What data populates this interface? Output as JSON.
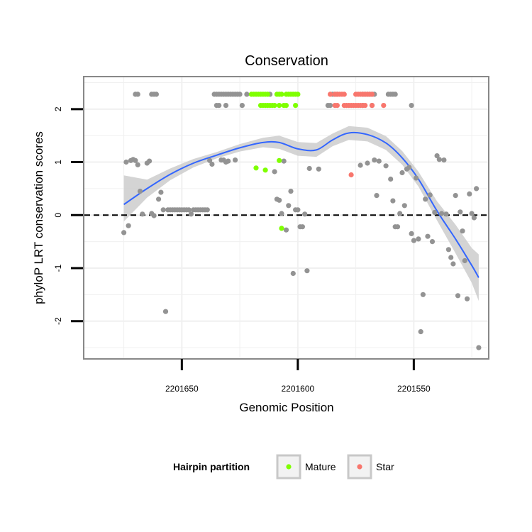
{
  "chart_data": {
    "type": "scatter",
    "title": "Conservation",
    "xlabel": "Genomic Position",
    "ylabel": "phyloP LRT conservation scores",
    "x_reversed": true,
    "xlim": [
      2201692,
      2201518
    ],
    "ylim": [
      -2.7,
      2.6
    ],
    "x_ticks": [
      2201650,
      2201600,
      2201550
    ],
    "y_ticks": [
      -2,
      -1,
      0,
      1,
      2
    ],
    "reference_line": {
      "y": 0,
      "style": "dashed"
    },
    "grid": true,
    "legend": {
      "title": "Hairpin partition",
      "position": "bottom",
      "entries": [
        {
          "label": "Mature",
          "color": "#7fff00"
        },
        {
          "label": "Star",
          "color": "#f8766d"
        }
      ]
    },
    "colors": {
      "other": "#939393",
      "Mature": "#7fff00",
      "Star": "#f8766d",
      "smooth": "#3366ff",
      "band": "#cccccc"
    },
    "series": [
      {
        "group": "other",
        "points": [
          [
            2201675,
            -0.33
          ],
          [
            2201673,
            -0.2
          ],
          [
            2201674,
            1.0
          ],
          [
            2201672,
            1.03
          ],
          [
            2201671,
            1.05
          ],
          [
            2201670,
            1.03
          ],
          [
            2201669,
            0.95
          ],
          [
            2201668,
            0.45
          ],
          [
            2201667,
            0.02
          ],
          [
            2201665,
            0.98
          ],
          [
            2201664,
            1.02
          ],
          [
            2201663,
            0.03
          ],
          [
            2201662,
            -0.01
          ],
          [
            2201660,
            0.3
          ],
          [
            2201659,
            0.43
          ],
          [
            2201658,
            0.1
          ],
          [
            2201657,
            -1.82
          ],
          [
            2201656,
            0.1
          ],
          [
            2201655,
            0.1
          ],
          [
            2201654,
            0.1
          ],
          [
            2201653,
            0.1
          ],
          [
            2201652,
            0.1
          ],
          [
            2201651,
            0.1
          ],
          [
            2201650,
            0.1
          ],
          [
            2201649,
            0.1
          ],
          [
            2201648,
            0.1
          ],
          [
            2201647,
            0.1
          ],
          [
            2201646,
            0.02
          ],
          [
            2201645,
            0.1
          ],
          [
            2201644,
            0.1
          ],
          [
            2201643,
            0.1
          ],
          [
            2201642,
            0.1
          ],
          [
            2201641,
            0.1
          ],
          [
            2201640,
            0.1
          ],
          [
            2201639,
            0.1
          ],
          [
            2201638,
            1.03
          ],
          [
            2201637,
            0.96
          ],
          [
            2201633,
            1.04
          ],
          [
            2201632,
            1.04
          ],
          [
            2201631,
            1.0
          ],
          [
            2201630,
            1.02
          ],
          [
            2201627,
            1.04
          ],
          [
            2201610,
            0.82
          ],
          [
            2201609,
            0.3
          ],
          [
            2201608,
            0.28
          ],
          [
            2201607,
            0.03
          ],
          [
            2201606,
            1.02
          ],
          [
            2201605,
            -0.28
          ],
          [
            2201604,
            0.18
          ],
          [
            2201603,
            0.45
          ],
          [
            2201602,
            -1.1
          ],
          [
            2201601,
            0.1
          ],
          [
            2201600,
            0.1
          ],
          [
            2201599,
            -0.22
          ],
          [
            2201598,
            -0.22
          ],
          [
            2201597,
            0.02
          ],
          [
            2201596,
            -1.05
          ],
          [
            2201595,
            0.88
          ],
          [
            2201591,
            0.87
          ],
          [
            2201573,
            0.94
          ],
          [
            2201570,
            0.98
          ],
          [
            2201567,
            1.04
          ],
          [
            2201566,
            0.37
          ],
          [
            2201565,
            1.02
          ],
          [
            2201562,
            0.93
          ],
          [
            2201560,
            0.68
          ],
          [
            2201559,
            0.27
          ],
          [
            2201558,
            -0.22
          ],
          [
            2201557,
            -0.22
          ],
          [
            2201556,
            0.03
          ],
          [
            2201555,
            0.8
          ],
          [
            2201554,
            0.18
          ],
          [
            2201553,
            0.87
          ],
          [
            2201552,
            0.9
          ],
          [
            2201551,
            -0.35
          ],
          [
            2201550,
            -0.48
          ],
          [
            2201549,
            0.7
          ],
          [
            2201548,
            -0.45
          ],
          [
            2201547,
            -2.2
          ],
          [
            2201546,
            -1.5
          ],
          [
            2201545,
            0.3
          ],
          [
            2201544,
            -0.4
          ],
          [
            2201543,
            0.38
          ],
          [
            2201542,
            -0.5
          ],
          [
            2201541,
            0.05
          ],
          [
            2201540,
            1.12
          ],
          [
            2201539,
            1.05
          ],
          [
            2201538,
            0.03
          ],
          [
            2201537,
            1.04
          ],
          [
            2201536,
            0.02
          ],
          [
            2201535,
            -0.65
          ],
          [
            2201534,
            -0.8
          ],
          [
            2201533,
            -0.92
          ],
          [
            2201532,
            0.37
          ],
          [
            2201531,
            -1.52
          ],
          [
            2201530,
            0.06
          ],
          [
            2201529,
            -0.3
          ],
          [
            2201528,
            -0.86
          ],
          [
            2201527,
            -1.58
          ],
          [
            2201526,
            0.4
          ],
          [
            2201525,
            0.03
          ],
          [
            2201524,
            -0.05
          ],
          [
            2201523,
            0.5
          ],
          [
            2201522,
            -2.5
          ],
          [
            2201670,
            2.28
          ],
          [
            2201669,
            2.28
          ],
          [
            2201663,
            2.28
          ],
          [
            2201662,
            2.28
          ],
          [
            2201661,
            2.28
          ],
          [
            2201636,
            2.28
          ],
          [
            2201635,
            2.28
          ],
          [
            2201634,
            2.28
          ],
          [
            2201633,
            2.28
          ],
          [
            2201632,
            2.28
          ],
          [
            2201631,
            2.28
          ],
          [
            2201630,
            2.28
          ],
          [
            2201629,
            2.28
          ],
          [
            2201628,
            2.28
          ],
          [
            2201627,
            2.28
          ],
          [
            2201626,
            2.28
          ],
          [
            2201625,
            2.28
          ],
          [
            2201622,
            2.28
          ],
          [
            2201612,
            2.28
          ],
          [
            2201585,
            2.28
          ],
          [
            2201584,
            2.28
          ],
          [
            2201583,
            2.28
          ],
          [
            2201572,
            2.28
          ],
          [
            2201571,
            2.28
          ],
          [
            2201570,
            2.28
          ],
          [
            2201569,
            2.28
          ],
          [
            2201568,
            2.28
          ],
          [
            2201567,
            2.28
          ],
          [
            2201561,
            2.28
          ],
          [
            2201560,
            2.28
          ],
          [
            2201559,
            2.28
          ],
          [
            2201558,
            2.28
          ],
          [
            2201635,
            2.07
          ],
          [
            2201634,
            2.07
          ],
          [
            2201631,
            2.07
          ],
          [
            2201624,
            2.07
          ],
          [
            2201587,
            2.07
          ],
          [
            2201586,
            2.07
          ],
          [
            2201572,
            2.07
          ],
          [
            2201568,
            2.07
          ],
          [
            2201551,
            2.07
          ]
        ]
      },
      {
        "group": "Mature",
        "name": "Mature",
        "points": [
          [
            2201620,
            2.28
          ],
          [
            2201619,
            2.28
          ],
          [
            2201618,
            2.28
          ],
          [
            2201617,
            2.28
          ],
          [
            2201616,
            2.28
          ],
          [
            2201615,
            2.28
          ],
          [
            2201614,
            2.28
          ],
          [
            2201613,
            2.28
          ],
          [
            2201609,
            2.28
          ],
          [
            2201608,
            2.28
          ],
          [
            2201607,
            2.28
          ],
          [
            2201605,
            2.28
          ],
          [
            2201604,
            2.28
          ],
          [
            2201603,
            2.28
          ],
          [
            2201602,
            2.28
          ],
          [
            2201601,
            2.28
          ],
          [
            2201600,
            2.28
          ],
          [
            2201616,
            2.07
          ],
          [
            2201615,
            2.07
          ],
          [
            2201614,
            2.07
          ],
          [
            2201613,
            2.07
          ],
          [
            2201612,
            2.07
          ],
          [
            2201611,
            2.07
          ],
          [
            2201610,
            2.07
          ],
          [
            2201608,
            2.07
          ],
          [
            2201606,
            2.07
          ],
          [
            2201605,
            2.07
          ],
          [
            2201601,
            2.07
          ],
          [
            2201618,
            0.89
          ],
          [
            2201614,
            0.85
          ],
          [
            2201608,
            1.03
          ],
          [
            2201607,
            -0.25
          ]
        ]
      },
      {
        "group": "Star",
        "name": "Star",
        "points": [
          [
            2201586,
            2.28
          ],
          [
            2201584,
            2.28
          ],
          [
            2201583,
            2.28
          ],
          [
            2201582,
            2.28
          ],
          [
            2201581,
            2.28
          ],
          [
            2201580,
            2.28
          ],
          [
            2201575,
            2.28
          ],
          [
            2201574,
            2.28
          ],
          [
            2201573,
            2.28
          ],
          [
            2201572,
            2.28
          ],
          [
            2201571,
            2.28
          ],
          [
            2201570,
            2.28
          ],
          [
            2201569,
            2.28
          ],
          [
            2201568,
            2.28
          ],
          [
            2201584,
            2.07
          ],
          [
            2201583,
            2.07
          ],
          [
            2201580,
            2.07
          ],
          [
            2201579,
            2.07
          ],
          [
            2201578,
            2.07
          ],
          [
            2201577,
            2.07
          ],
          [
            2201576,
            2.07
          ],
          [
            2201575,
            2.07
          ],
          [
            2201574,
            2.07
          ],
          [
            2201573,
            2.07
          ],
          [
            2201572,
            2.07
          ],
          [
            2201571,
            2.07
          ],
          [
            2201568,
            2.07
          ],
          [
            2201563,
            2.07
          ],
          [
            2201577,
            0.76
          ]
        ]
      }
    ],
    "smooth": {
      "x": [
        2201675,
        2201665,
        2201655,
        2201645,
        2201635,
        2201625,
        2201615,
        2201608,
        2201600,
        2201592,
        2201585,
        2201578,
        2201570,
        2201562,
        2201555,
        2201548,
        2201540,
        2201532,
        2201525,
        2201522
      ],
      "y": [
        0.2,
        0.5,
        0.77,
        0.98,
        1.13,
        1.27,
        1.37,
        1.37,
        1.25,
        1.23,
        1.42,
        1.55,
        1.52,
        1.36,
        1.08,
        0.68,
        0.08,
        -0.45,
        -0.95,
        -1.18
      ],
      "lower": [
        -0.12,
        0.33,
        0.66,
        0.9,
        1.07,
        1.2,
        1.28,
        1.25,
        1.12,
        1.1,
        1.3,
        1.42,
        1.39,
        1.23,
        0.95,
        0.54,
        -0.1,
        -0.72,
        -1.28,
        -1.62
      ],
      "upper": [
        0.75,
        0.67,
        0.88,
        1.06,
        1.19,
        1.34,
        1.46,
        1.5,
        1.38,
        1.36,
        1.54,
        1.68,
        1.65,
        1.49,
        1.21,
        0.82,
        0.26,
        -0.18,
        -0.62,
        -0.74
      ]
    }
  }
}
